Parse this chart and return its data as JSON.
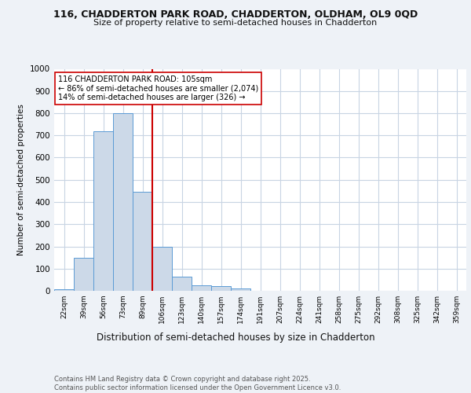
{
  "title1": "116, CHADDERTON PARK ROAD, CHADDERTON, OLDHAM, OL9 0QD",
  "title2": "Size of property relative to semi-detached houses in Chadderton",
  "xlabel": "Distribution of semi-detached houses by size in Chadderton",
  "ylabel": "Number of semi-detached properties",
  "bar_labels": [
    "22sqm",
    "39sqm",
    "56sqm",
    "73sqm",
    "89sqm",
    "106sqm",
    "123sqm",
    "140sqm",
    "157sqm",
    "174sqm",
    "191sqm",
    "207sqm",
    "224sqm",
    "241sqm",
    "258sqm",
    "275sqm",
    "292sqm",
    "308sqm",
    "325sqm",
    "342sqm",
    "359sqm"
  ],
  "bar_values": [
    8,
    148,
    718,
    800,
    447,
    200,
    62,
    25,
    20,
    10,
    0,
    0,
    0,
    0,
    0,
    0,
    0,
    0,
    0,
    0,
    0
  ],
  "bar_color": "#ccd9e8",
  "bar_edge_color": "#5b9bd5",
  "vline_x_idx": 5,
  "vline_color": "#cc0000",
  "annotation_text": "116 CHADDERTON PARK ROAD: 105sqm\n← 86% of semi-detached houses are smaller (2,074)\n14% of semi-detached houses are larger (326) →",
  "annotation_box_color": "#ffffff",
  "annotation_box_edge": "#cc0000",
  "ylim": [
    0,
    1000
  ],
  "yticks": [
    0,
    100,
    200,
    300,
    400,
    500,
    600,
    700,
    800,
    900,
    1000
  ],
  "footer": "Contains HM Land Registry data © Crown copyright and database right 2025.\nContains public sector information licensed under the Open Government Licence v3.0.",
  "bg_color": "#eef2f7",
  "plot_bg_color": "#ffffff",
  "grid_color": "#c8d4e3"
}
